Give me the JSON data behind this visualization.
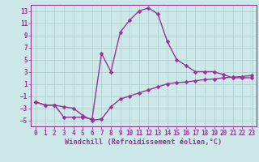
{
  "line1_x": [
    0,
    1,
    2,
    3,
    4,
    5,
    6,
    7,
    8,
    9,
    10,
    11,
    12,
    13,
    14,
    15,
    16,
    17,
    18,
    19,
    20,
    21,
    22,
    23
  ],
  "line1_y": [
    -2,
    -2.5,
    -2.5,
    -4.5,
    -4.5,
    -4.5,
    -4.8,
    6.0,
    3.0,
    9.5,
    11.5,
    13.0,
    13.5,
    12.5,
    8.0,
    5.0,
    4.0,
    3.0,
    3.0,
    3.0,
    2.5,
    2.0,
    2.0,
    2.0
  ],
  "line2_x": [
    0,
    1,
    2,
    3,
    4,
    5,
    6,
    7,
    8,
    9,
    10,
    11,
    12,
    13,
    14,
    15,
    16,
    17,
    18,
    19,
    20,
    21,
    22,
    23
  ],
  "line2_y": [
    -2,
    -2.5,
    -2.5,
    -2.8,
    -3.0,
    -4.2,
    -5.0,
    -4.8,
    -2.8,
    -1.5,
    -1.0,
    -0.5,
    0.0,
    0.5,
    1.0,
    1.2,
    1.3,
    1.5,
    1.7,
    1.8,
    2.0,
    2.1,
    2.2,
    2.4
  ],
  "line_color": "#993399",
  "marker": "D",
  "markersize": 2.5,
  "linewidth": 1.0,
  "bg_color": "#cde8e8",
  "grid_color": "#aacccc",
  "xlabel": "Windchill (Refroidissement éolien,°C)",
  "xlim": [
    -0.5,
    23.5
  ],
  "ylim": [
    -6,
    14
  ],
  "xticks": [
    0,
    1,
    2,
    3,
    4,
    5,
    6,
    7,
    8,
    9,
    10,
    11,
    12,
    13,
    14,
    15,
    16,
    17,
    18,
    19,
    20,
    21,
    22,
    23
  ],
  "yticks": [
    -5,
    -3,
    -1,
    1,
    3,
    5,
    7,
    9,
    11,
    13
  ],
  "tick_fontsize": 5.5,
  "xlabel_fontsize": 6.2,
  "text_color": "#993399"
}
